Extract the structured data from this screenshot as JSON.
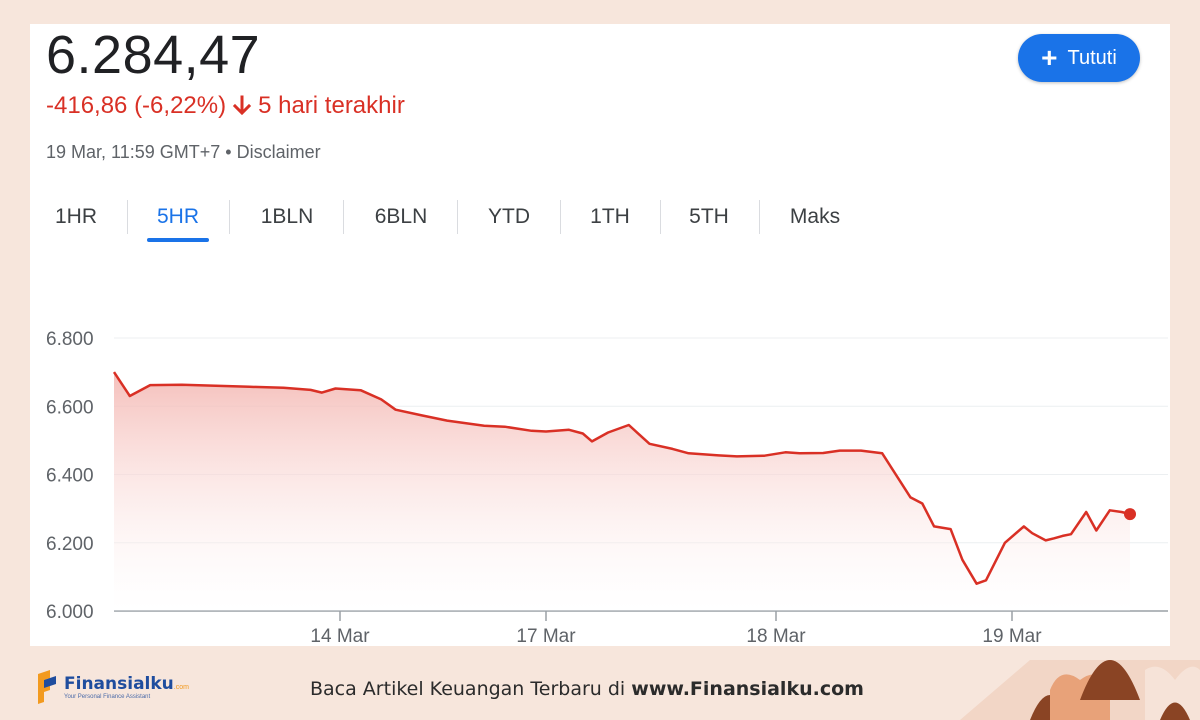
{
  "quote": {
    "price": "6.284,47",
    "change": "-416,86 (-6,22%)",
    "period": "5 hari terakhir",
    "timestamp": "19 Mar, 11:59 GMT+7",
    "separator": "•",
    "disclaimer": "Disclaimer"
  },
  "follow_button": {
    "label": "Tututi"
  },
  "tabs": [
    {
      "label": "1HR",
      "active": false
    },
    {
      "label": "5HR",
      "active": true
    },
    {
      "label": "1BLN",
      "active": false
    },
    {
      "label": "6BLN",
      "active": false
    },
    {
      "label": "YTD",
      "active": false
    },
    {
      "label": "1TH",
      "active": false
    },
    {
      "label": "5TH",
      "active": false
    },
    {
      "label": "Maks",
      "active": false
    }
  ],
  "colors": {
    "line": "#d93025",
    "fill_top": "#f4b8b3",
    "accent": "#1a73e8",
    "footer_bg": "#f7e6dc"
  },
  "chart_data": {
    "type": "area",
    "y_tick_labels": [
      "6.000",
      "6.200",
      "6.400",
      "6.600",
      "6.800"
    ],
    "y_ticks": [
      6000,
      6200,
      6400,
      6600,
      6800
    ],
    "ylim": [
      6000,
      6800
    ],
    "x_range": [
      0,
      4.54
    ],
    "x_ticks": [
      {
        "label": "14 Mar",
        "x": 1
      },
      {
        "label": "17 Mar",
        "x": 2
      },
      {
        "label": "18 Mar",
        "x": 3
      },
      {
        "label": "19 Mar",
        "x": 4
      }
    ],
    "grid": true,
    "series": [
      {
        "values": [
          [
            0.0,
            6700
          ],
          [
            0.07,
            6630
          ],
          [
            0.16,
            6662
          ],
          [
            0.3,
            6663
          ],
          [
            0.45,
            6660
          ],
          [
            0.6,
            6657
          ],
          [
            0.75,
            6654
          ],
          [
            0.87,
            6648
          ],
          [
            0.92,
            6640
          ],
          [
            0.98,
            6652
          ],
          [
            1.1,
            6647
          ],
          [
            1.2,
            6620
          ],
          [
            1.27,
            6590
          ],
          [
            1.4,
            6573
          ],
          [
            1.52,
            6558
          ],
          [
            1.7,
            6543
          ],
          [
            1.8,
            6540
          ],
          [
            1.93,
            6528
          ],
          [
            2.0,
            6526
          ],
          [
            2.1,
            6531
          ],
          [
            2.16,
            6520
          ],
          [
            2.2,
            6497
          ],
          [
            2.27,
            6523
          ],
          [
            2.36,
            6545
          ],
          [
            2.45,
            6490
          ],
          [
            2.55,
            6475
          ],
          [
            2.62,
            6462
          ],
          [
            2.75,
            6456
          ],
          [
            2.83,
            6453
          ],
          [
            2.95,
            6455
          ],
          [
            3.04,
            6465
          ],
          [
            3.1,
            6462
          ],
          [
            3.2,
            6463
          ],
          [
            3.27,
            6470
          ],
          [
            3.36,
            6470
          ],
          [
            3.45,
            6462
          ],
          [
            3.57,
            6333
          ],
          [
            3.62,
            6315
          ],
          [
            3.67,
            6248
          ],
          [
            3.74,
            6240
          ],
          [
            3.79,
            6150
          ],
          [
            3.85,
            6080
          ],
          [
            3.89,
            6090
          ],
          [
            3.97,
            6200
          ],
          [
            4.07,
            6248
          ],
          [
            4.12,
            6228
          ],
          [
            4.2,
            6207
          ],
          [
            4.25,
            6213
          ],
          [
            4.3,
            6220
          ],
          [
            4.35,
            6225
          ],
          [
            4.44,
            6290
          ],
          [
            4.5,
            6236
          ],
          [
            4.58,
            6295
          ],
          [
            4.65,
            6290
          ],
          [
            4.7,
            6284
          ]
        ]
      }
    ],
    "endpoint_marker": true
  },
  "footer": {
    "brand": "Finansialku",
    "brand_sup": ".com",
    "brand_tagline": "Your Personal Finance Assistant",
    "text_prefix": "Baca Artikel Keuangan Terbaru di",
    "text_link": "www.Finansialku.com"
  }
}
